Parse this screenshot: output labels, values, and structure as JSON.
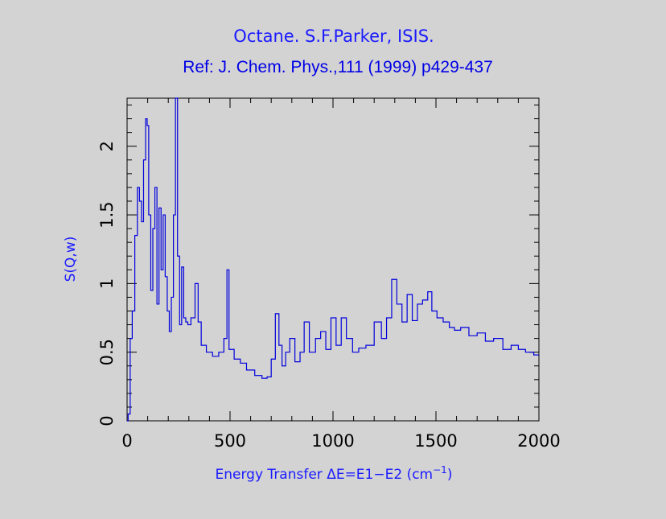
{
  "colors": {
    "background": "#d3d3d3",
    "series": "#0000dd",
    "text": "#1a1aff",
    "axes": "#000000"
  },
  "chart_data": {
    "type": "line",
    "title": "Octane. S.F.Parker, ISIS.",
    "subtitle": "Ref: J. Chem. Phys.,111 (1999) p429-437",
    "xlabel": "Energy Transfer ΔE=E1−E2 (cm",
    "xlabel_superscript": "−1",
    "xlabel_suffix": ")",
    "ylabel": "S(Q,w)",
    "xlim": [
      0,
      2000
    ],
    "ylim": [
      0,
      2.35
    ],
    "xticks": [
      "0",
      "500",
      "1000",
      "1500",
      "2000"
    ],
    "yticks": [
      "0",
      "0.5",
      "1",
      "1.5",
      "2"
    ],
    "grid": false,
    "series": [
      {
        "x": [
          0,
          10,
          20,
          30,
          45,
          55,
          65,
          75,
          85,
          95,
          100,
          110,
          120,
          130,
          140,
          150,
          160,
          170,
          180,
          190,
          200,
          210,
          220,
          230,
          240,
          250,
          260,
          270,
          280,
          290,
          300,
          320,
          340,
          350,
          370,
          400,
          430,
          460,
          480,
          490,
          500,
          540,
          560,
          600,
          640,
          670,
          690,
          710,
          730,
          745,
          760,
          780,
          800,
          830,
          850,
          870,
          900,
          930,
          950,
          980,
          1000,
          1030,
          1050,
          1080,
          1110,
          1140,
          1180,
          1220,
          1250,
          1270,
          1300,
          1320,
          1350,
          1370,
          1400,
          1420,
          1450,
          1470,
          1490,
          1520,
          1550,
          1580,
          1600,
          1640,
          1680,
          1720,
          1760,
          1800,
          1850,
          1880,
          1920,
          1950,
          2000
        ],
        "y": [
          0,
          0.05,
          0.6,
          0.8,
          1.35,
          1.7,
          1.6,
          1.45,
          1.9,
          2.2,
          2.15,
          1.5,
          0.95,
          1.4,
          1.7,
          0.85,
          1.55,
          1.1,
          1.5,
          1.05,
          0.8,
          0.65,
          0.9,
          1.5,
          2.35,
          1.2,
          0.7,
          1.12,
          0.75,
          0.72,
          0.7,
          0.75,
          1.0,
          0.72,
          0.55,
          0.5,
          0.47,
          0.5,
          0.6,
          1.1,
          0.52,
          0.45,
          0.42,
          0.37,
          0.33,
          0.31,
          0.32,
          0.45,
          0.78,
          0.55,
          0.4,
          0.5,
          0.6,
          0.43,
          0.5,
          0.72,
          0.5,
          0.6,
          0.65,
          0.52,
          0.75,
          0.55,
          0.75,
          0.6,
          0.5,
          0.53,
          0.55,
          0.72,
          0.6,
          0.75,
          1.03,
          0.85,
          0.72,
          0.92,
          0.73,
          0.85,
          0.88,
          0.94,
          0.8,
          0.75,
          0.72,
          0.68,
          0.66,
          0.68,
          0.62,
          0.64,
          0.58,
          0.6,
          0.52,
          0.55,
          0.52,
          0.5,
          0.48
        ]
      }
    ]
  }
}
